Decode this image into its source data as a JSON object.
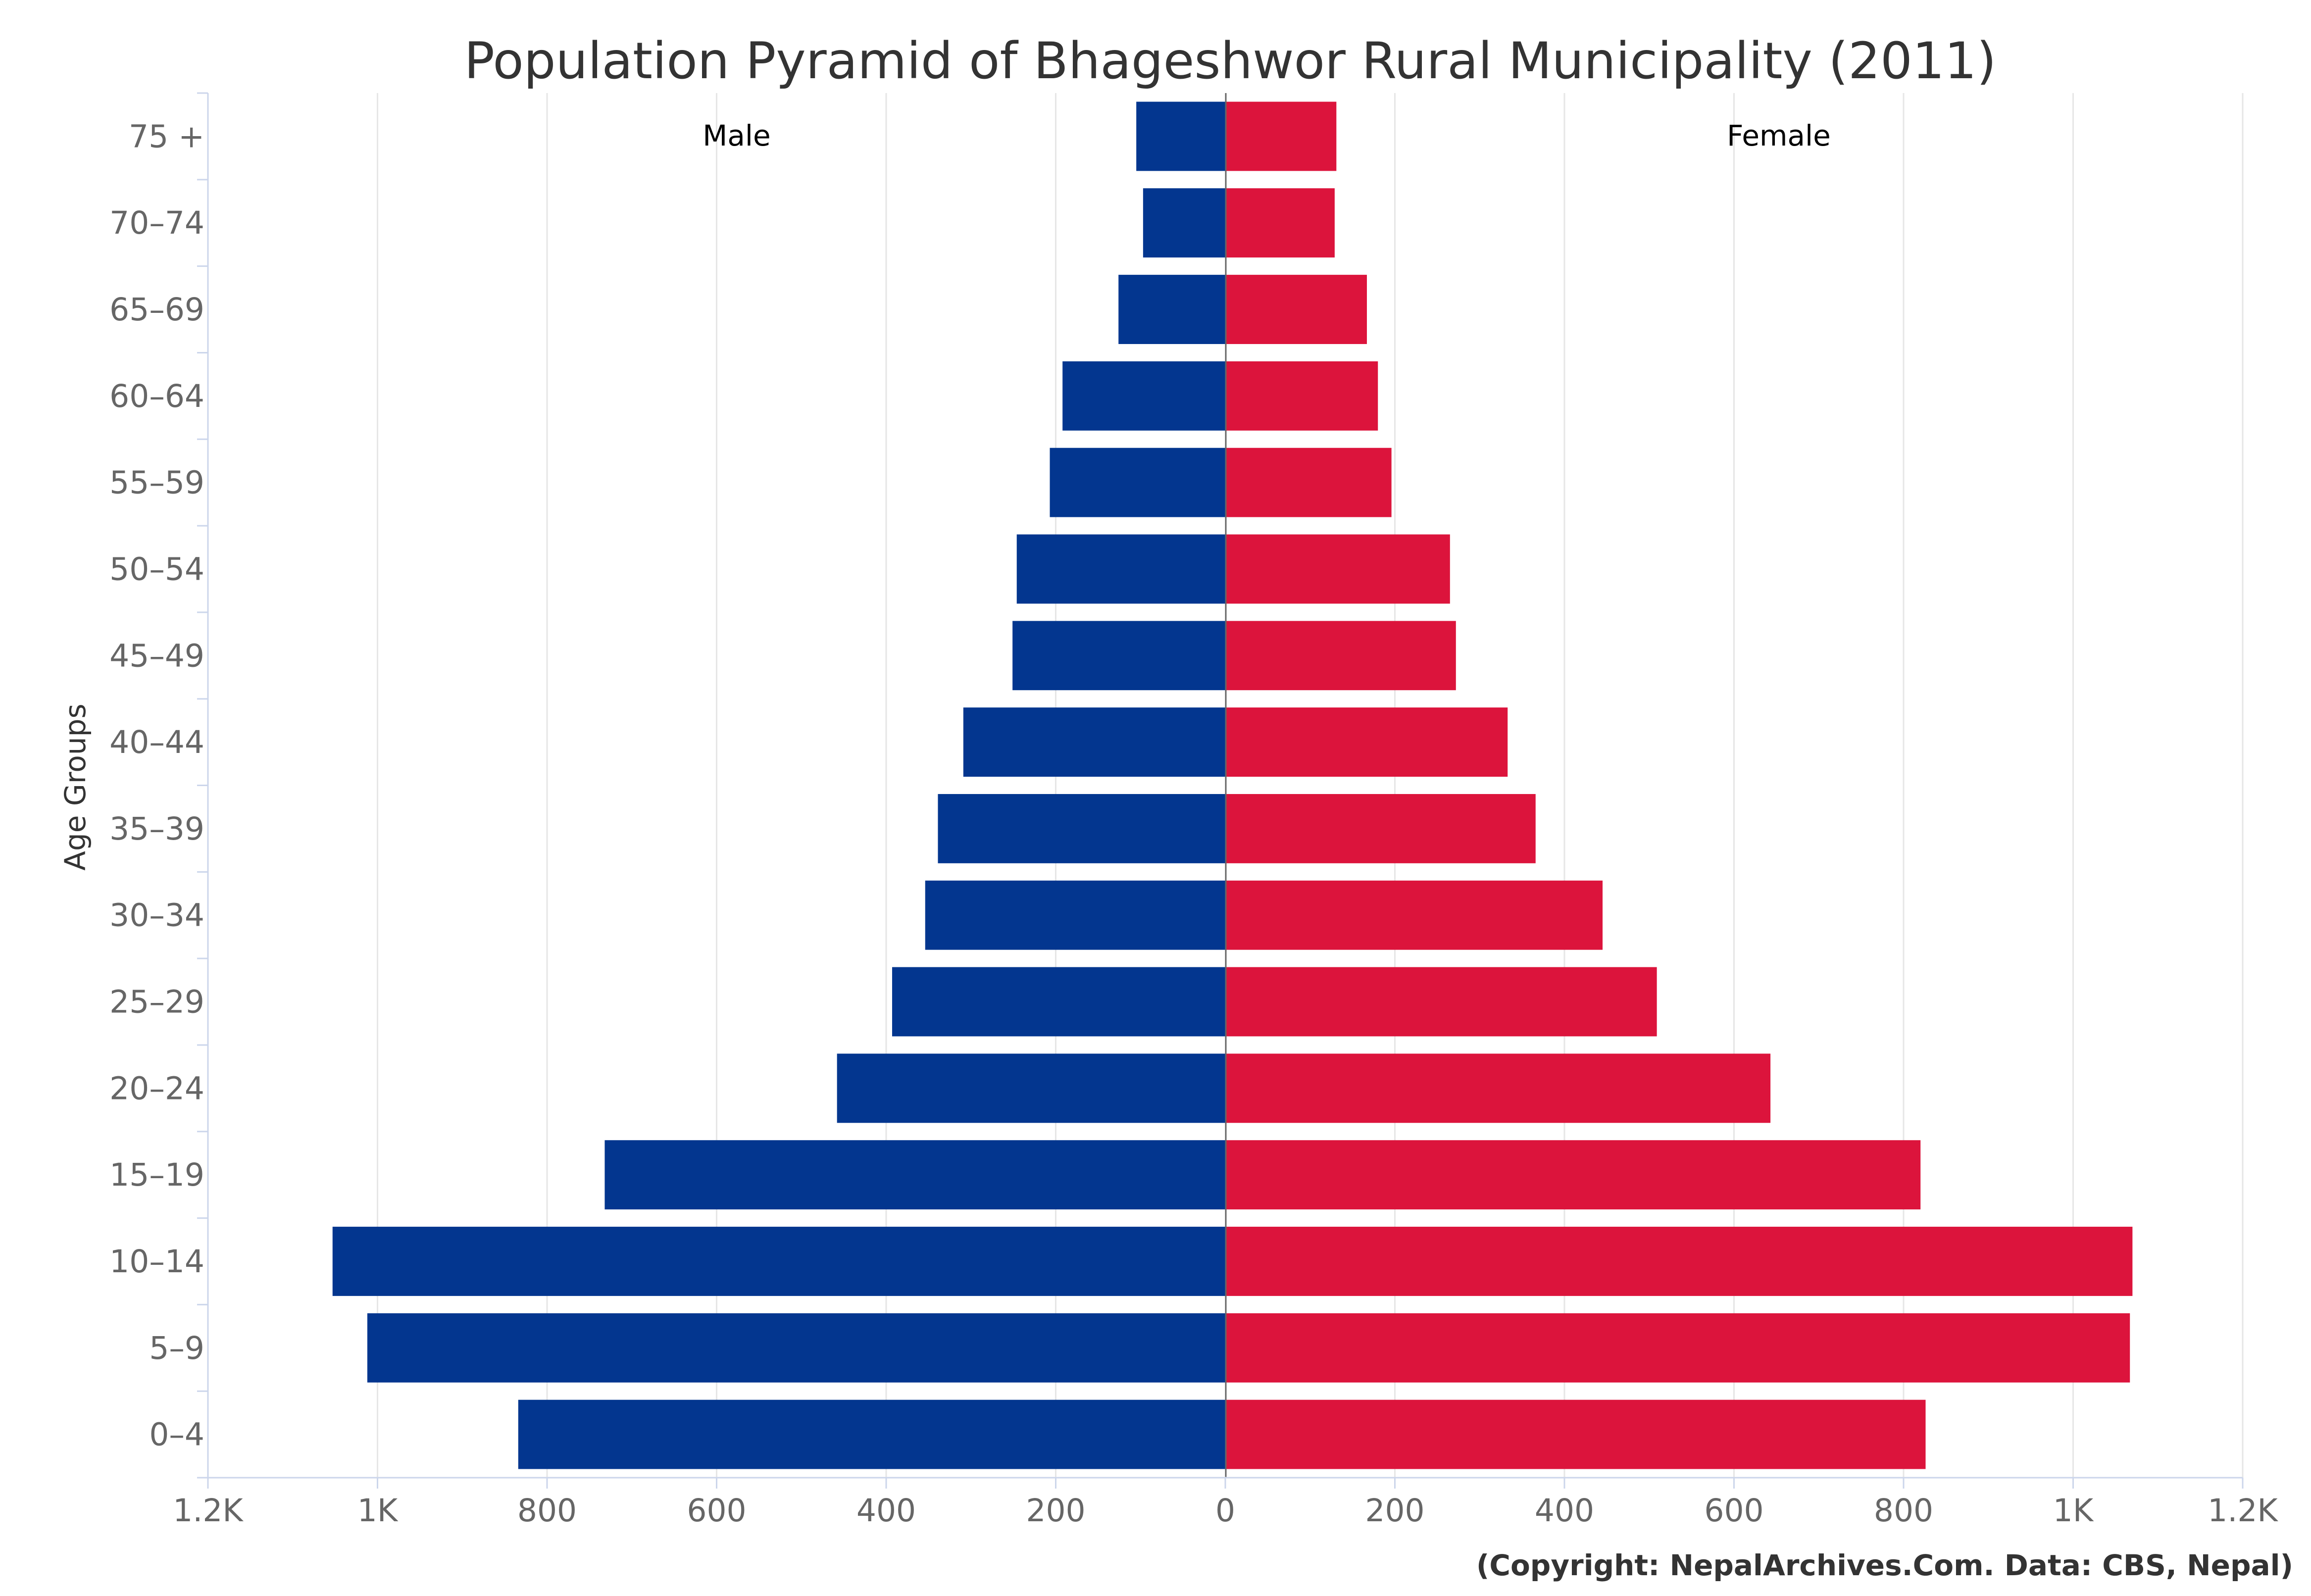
{
  "chart_data": {
    "type": "bar",
    "orientation": "horizontal",
    "title": "Population Pyramid of Bhageshwor Rural Municipality (2011)",
    "ylabel": "Age Groups",
    "xlabel": "",
    "categories": [
      "0-4",
      "5-9",
      "10-14",
      "15-19",
      "20-24",
      "25-29",
      "30-34",
      "35-39",
      "40-44",
      "45-49",
      "50-54",
      "55-59",
      "60-64",
      "65-69",
      "70-74",
      "75 +"
    ],
    "series": [
      {
        "name": "Male",
        "color": "#03368f",
        "side": "left",
        "values": [
          834,
          1012,
          1053,
          732,
          458,
          393,
          354,
          339,
          309,
          251,
          246,
          207,
          192,
          126,
          97,
          105
        ]
      },
      {
        "name": "Female",
        "color": "#dc143c",
        "side": "right",
        "values": [
          826,
          1067,
          1070,
          820,
          643,
          509,
          445,
          366,
          333,
          272,
          265,
          196,
          180,
          167,
          129,
          131
        ]
      }
    ],
    "xlim": [
      -1200,
      1200
    ],
    "x_ticks": [
      -1200,
      -1000,
      -800,
      -600,
      -400,
      -200,
      0,
      200,
      400,
      600,
      800,
      1000,
      1200
    ],
    "x_tick_labels": [
      "1.2K",
      "1K",
      "800",
      "600",
      "400",
      "200",
      "0",
      "200",
      "400",
      "600",
      "800",
      "1K",
      "1.2K"
    ],
    "grid": true,
    "credit": "(Copyright: NepalArchives.Com. Data: CBS, Nepal)"
  }
}
